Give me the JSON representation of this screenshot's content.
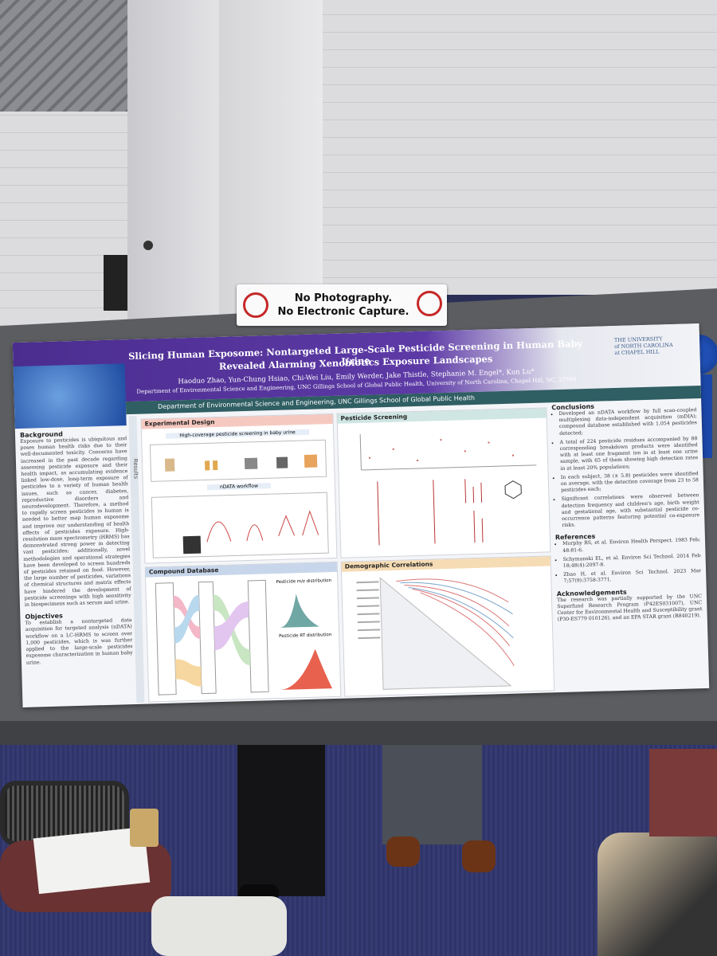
{
  "sign": {
    "line1": "No Photography.",
    "line2": "No Electronic Capture."
  },
  "poster": {
    "title": {
      "line1": "Slicing Human Exposome: Nontargeted Large-Scale Pesticide Screening in Human Baby Urine",
      "line2": "Revealed Alarming Xenobiotics Exposure Landscapes"
    },
    "authors": "Haoduo Zhao, Yun-Chung Hsiao, Chi-Wei Liu, Emily Werder, Jake Thistle, Stephanie M. Engel*, Kun Lu*",
    "affiliation": "Department of Environmental Science and Engineering, UNC Gillings School of Global Public Health, University of North Carolina, Chapel Hill, NC, 27599",
    "department": "Department of Environmental Science and Engineering, UNC Gillings School of Global Public Health",
    "logo": {
      "line1": "THE UNIVERSITY",
      "line2": "of NORTH CAROLINA",
      "line3": "at CHAPEL HILL"
    },
    "background": {
      "heading": "Background",
      "text": "Exposure to pesticides is ubiquitous and poses human health risks due to their well-documented toxicity. Concerns have increased in the past decade regarding assessing pesticide exposure and their health impact, as accumulating evidence linked low-dose, long-term exposure of pesticides to a variety of human health issues, such as cancer, diabetes, reproductive disorders and neurodevelopment. Therefore, a method to rapidly screen pesticides in human is needed to better map human exposome and improve our understanding of health effects of pesticides exposure. High-resolution mass spectrometry (HRMS) has demonstrated strong power in detecting vast pesticides; additionally, novel methodologies and operational strategies have been developed to screen hundreds of pesticides retained on food. However, the large number of pesticides, variations of chemical structures and matrix effects have hindered the development of pesticide screenings with high sensitivity in biospecimens such as serum and urine."
    },
    "objectives": {
      "heading": "Objectives",
      "text": "To establish a nontargeted data acquisition for targeted analysis (nDATA) workflow on a LC-HRMS to screen over 1,000 pesticides, which is was further applied to the large-scale pesticides exposome characterization in human baby urine."
    },
    "results_label": "Results",
    "panels": {
      "design": {
        "heading": "Experimental Design",
        "sub1": "High-coverage pesticide screening in baby urine",
        "sub2": "nDATA workflow"
      },
      "screening": {
        "heading": "Pesticide Screening"
      },
      "database": {
        "heading": "Compound Database",
        "sub1": "Pesticide m/z distribution",
        "sub2": "Pesticide RT distribution"
      },
      "demographic": {
        "heading": "Demographic Correlations"
      }
    },
    "conclusions": {
      "heading": "Conclusions",
      "items": [
        "Developed an nDATA workflow by full scan-coupled multiplexing data-independent acquisition (mDIA); compound database established with 1,054 pesticides detected;",
        "A total of 224 pesticide residues accompanied by 88 corresponding breakdown products were identified with at least one fragment ion in at least one urine sample, with 65 of them showing high detection rates in at least 20% populations;",
        "In each subject, 38 (± 5.8) pesticides were identified on average, with the detection coverage from 23 to 58 pesticides each;",
        "Significant correlations were observed between detection frequency and children's age, birth weight and gestational age, with substantial pesticide co-occurrence patterns featuring potential co-exposure risks."
      ]
    },
    "references": {
      "heading": "References",
      "items": [
        "Murphy RS, et al. Environ Health Perspect. 1983 Feb; 48:81-6.",
        "Schymanski EL, et al. Environ Sci Technol. 2014 Feb 18;48(4):2097-8.",
        "Zhao H, et al. Environ Sci Technol. 2023 Mar 7;57(9):3758-3771."
      ]
    },
    "acknowledgements": {
      "heading": "Acknowledgements",
      "text": "The research was partially supported by the UNC Superfund Research Program (P42ES031007), UNC Center for Environmental Health and Susceptibility grant (P30-ES779 010126), and an EPA STAR grant (R840219)."
    }
  }
}
